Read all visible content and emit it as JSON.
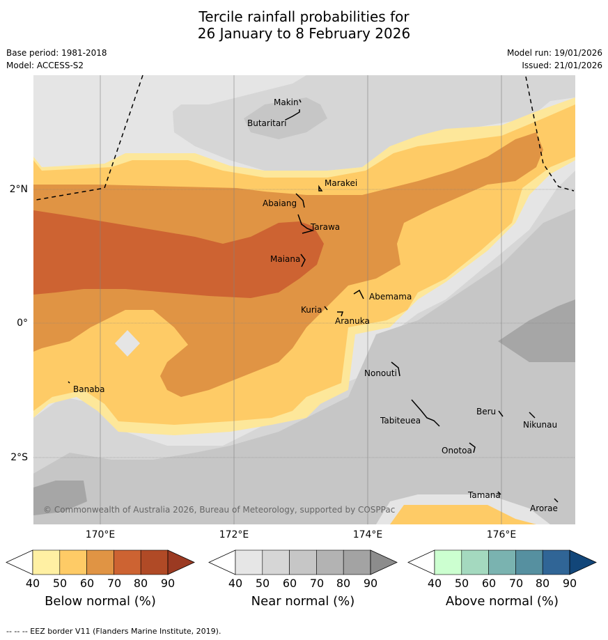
{
  "title_line1": "Tercile rainfall probabilities for",
  "title_line2": "26 January to 8 February 2026",
  "base_period": "Base period: 1981-2018",
  "model": "Model: ACCESS-S2",
  "model_run": "Model run: 19/01/2026",
  "issued": "Issued: 21/01/2026",
  "latitude_labels": [
    "2°N",
    "0°",
    "2°S"
  ],
  "longitude_labels": [
    "170°E",
    "172°E",
    "174°E",
    "176°E"
  ],
  "places": {
    "makin": "Makin",
    "butaritari": "Butaritari",
    "marakei": "Marakei",
    "abaiang": "Abaiang",
    "tarawa": "Tarawa",
    "maiana": "Maiana",
    "abemama": "Abemama",
    "kuria": "Kuria",
    "aranuka": "Aranuka",
    "nonouti": "Nonouti",
    "banaba": "Banaba",
    "beru": "Beru",
    "tabiteuea": "Tabiteuea",
    "nikunau": "Nikunau",
    "onotoa": "Onotoa",
    "tamana": "Tamana",
    "arorae": "Arorae"
  },
  "copyright": "© Commonwealth of Australia 2026, Bureau of Meteorology, supported by COSPPac",
  "colorbars": [
    {
      "label": "Below normal (%)",
      "ticks": [
        "40",
        "50",
        "60",
        "70",
        "80",
        "90"
      ],
      "colors": [
        "#fff0a3",
        "#fecb66",
        "#e09444",
        "#cd6332",
        "#b04a26"
      ],
      "tip_color": "#9b3a22"
    },
    {
      "label": "Near normal (%)",
      "ticks": [
        "40",
        "50",
        "60",
        "70",
        "80",
        "90"
      ],
      "colors": [
        "#e6e6e6",
        "#d6d6d6",
        "#c6c6c6",
        "#b3b3b3",
        "#a3a3a3"
      ],
      "tip_color": "#8c8c8c"
    },
    {
      "label": "Above normal (%)",
      "ticks": [
        "40",
        "50",
        "60",
        "70",
        "80",
        "90"
      ],
      "colors": [
        "#ccffd0",
        "#a4d9bf",
        "#7ab3b0",
        "#5690a0",
        "#306596"
      ],
      "tip_color": "#124679"
    }
  ],
  "map_colors": {
    "near_40": "#e5e5e5",
    "near_50": "#d6d6d6",
    "near_60": "#c6c6c6",
    "near_70": "#a6a6a6",
    "below_40": "#fde79a",
    "below_50": "#fecb66",
    "below_60": "#e09444",
    "below_70": "#cd6332"
  },
  "footnote": "--  --  -- EEZ border V11 (Flanders Marine Institute, 2019)."
}
